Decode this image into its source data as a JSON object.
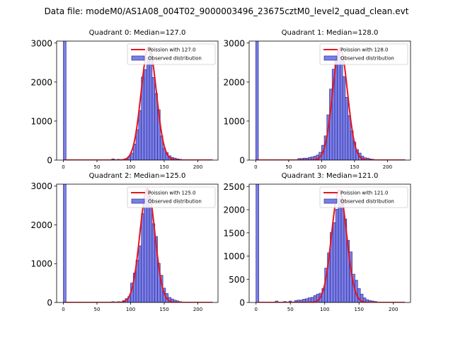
{
  "figure": {
    "suptitle": "Data file: modeM0/AS1A08_004T02_9000003496_23675cztM0_level2_quad_clean.evt"
  },
  "chart_data": [
    {
      "type": "bar",
      "title": "Quadrant 0: Median=127.0",
      "xlim": [
        -10,
        230
      ],
      "ylim": [
        0,
        3050
      ],
      "xticks": [
        0,
        50,
        100,
        150,
        200
      ],
      "yticks": [
        0,
        1000,
        2000,
        3000
      ],
      "bin_width": 4,
      "bins": [
        [
          0,
          3050
        ],
        [
          72,
          30
        ],
        [
          80,
          20
        ],
        [
          88,
          20
        ],
        [
          92,
          40
        ],
        [
          96,
          90
        ],
        [
          100,
          180
        ],
        [
          104,
          410
        ],
        [
          108,
          780
        ],
        [
          112,
          1270
        ],
        [
          116,
          2130
        ],
        [
          120,
          2320
        ],
        [
          124,
          2620
        ],
        [
          128,
          2900
        ],
        [
          132,
          2120
        ],
        [
          136,
          1710
        ],
        [
          140,
          1290
        ],
        [
          144,
          620
        ],
        [
          148,
          310
        ],
        [
          152,
          190
        ],
        [
          156,
          110
        ],
        [
          160,
          70
        ],
        [
          164,
          50
        ],
        [
          168,
          30
        ],
        [
          172,
          20
        ]
      ],
      "curve": {
        "mean": 127.0,
        "peak": 2900,
        "label": "Poission with 127.0"
      },
      "legend": {
        "curve_label": "Poission with 127.0",
        "hist_label": "Observed distribution",
        "position": "upper right"
      }
    },
    {
      "type": "bar",
      "title": "Quadrant 1: Median=128.0",
      "xlim": [
        -10,
        235
      ],
      "ylim": [
        0,
        3050
      ],
      "xticks": [
        0,
        50,
        100,
        150,
        200
      ],
      "yticks": [
        0,
        1000,
        2000,
        3000
      ],
      "bin_width": 4,
      "bins": [
        [
          0,
          3050
        ],
        [
          64,
          40
        ],
        [
          68,
          40
        ],
        [
          72,
          50
        ],
        [
          76,
          50
        ],
        [
          80,
          70
        ],
        [
          84,
          80
        ],
        [
          88,
          100
        ],
        [
          92,
          130
        ],
        [
          96,
          200
        ],
        [
          100,
          380
        ],
        [
          104,
          620
        ],
        [
          108,
          1160
        ],
        [
          112,
          1820
        ],
        [
          116,
          2330
        ],
        [
          120,
          2560
        ],
        [
          124,
          2830
        ],
        [
          128,
          2650
        ],
        [
          132,
          2140
        ],
        [
          136,
          1610
        ],
        [
          140,
          1140
        ],
        [
          144,
          750
        ],
        [
          148,
          460
        ],
        [
          152,
          270
        ],
        [
          156,
          180
        ],
        [
          160,
          100
        ],
        [
          164,
          60
        ],
        [
          168,
          50
        ],
        [
          172,
          30
        ],
        [
          176,
          20
        ]
      ],
      "curve": {
        "mean": 128.0,
        "peak": 2880,
        "label": "Poission with 128.0"
      },
      "legend": {
        "curve_label": "Poission with 128.0",
        "hist_label": "Observed distribution",
        "position": "upper right"
      }
    },
    {
      "type": "bar",
      "title": "Quadrant 2: Median=125.0",
      "xlim": [
        -10,
        230
      ],
      "ylim": [
        0,
        3050
      ],
      "xticks": [
        0,
        50,
        100,
        150,
        200
      ],
      "yticks": [
        0,
        1000,
        2000,
        3000
      ],
      "bin_width": 4,
      "bins": [
        [
          0,
          3050
        ],
        [
          72,
          20
        ],
        [
          80,
          20
        ],
        [
          88,
          50
        ],
        [
          92,
          100
        ],
        [
          96,
          150
        ],
        [
          100,
          500
        ],
        [
          104,
          760
        ],
        [
          108,
          1090
        ],
        [
          112,
          1460
        ],
        [
          116,
          2290
        ],
        [
          120,
          2680
        ],
        [
          124,
          2900
        ],
        [
          128,
          2470
        ],
        [
          132,
          2030
        ],
        [
          136,
          1700
        ],
        [
          140,
          1010
        ],
        [
          144,
          700
        ],
        [
          148,
          370
        ],
        [
          152,
          230
        ],
        [
          156,
          130
        ],
        [
          160,
          90
        ],
        [
          164,
          60
        ],
        [
          168,
          40
        ],
        [
          172,
          20
        ]
      ],
      "curve": {
        "mean": 125.0,
        "peak": 2940,
        "label": "Poission with 125.0"
      },
      "legend": {
        "curve_label": "Poission with 125.0",
        "hist_label": "Observed distribution",
        "position": "upper right"
      }
    },
    {
      "type": "bar",
      "title": "Quadrant 3: Median=121.0",
      "xlim": [
        -10,
        225
      ],
      "ylim": [
        0,
        2550
      ],
      "xticks": [
        0,
        50,
        100,
        150,
        200
      ],
      "yticks": [
        0,
        500,
        1000,
        1500,
        2000,
        2500
      ],
      "bin_width": 4,
      "bins": [
        [
          0,
          2550
        ],
        [
          28,
          30
        ],
        [
          40,
          20
        ],
        [
          48,
          30
        ],
        [
          56,
          40
        ],
        [
          60,
          50
        ],
        [
          64,
          50
        ],
        [
          68,
          70
        ],
        [
          72,
          80
        ],
        [
          76,
          100
        ],
        [
          80,
          110
        ],
        [
          84,
          150
        ],
        [
          88,
          180
        ],
        [
          92,
          200
        ],
        [
          96,
          300
        ],
        [
          100,
          740
        ],
        [
          104,
          1070
        ],
        [
          108,
          1510
        ],
        [
          112,
          1720
        ],
        [
          116,
          2010
        ],
        [
          120,
          2240
        ],
        [
          124,
          2200
        ],
        [
          128,
          1800
        ],
        [
          132,
          1340
        ],
        [
          136,
          1090
        ],
        [
          140,
          610
        ],
        [
          144,
          480
        ],
        [
          148,
          300
        ],
        [
          152,
          180
        ],
        [
          156,
          100
        ],
        [
          160,
          60
        ],
        [
          164,
          40
        ],
        [
          168,
          30
        ],
        [
          172,
          20
        ]
      ],
      "curve": {
        "mean": 121.0,
        "peak": 2420,
        "label": "Poission with 121.0"
      },
      "legend": {
        "curve_label": "Poission with 121.0",
        "hist_label": "Observed distribution",
        "position": "upper right"
      }
    }
  ]
}
